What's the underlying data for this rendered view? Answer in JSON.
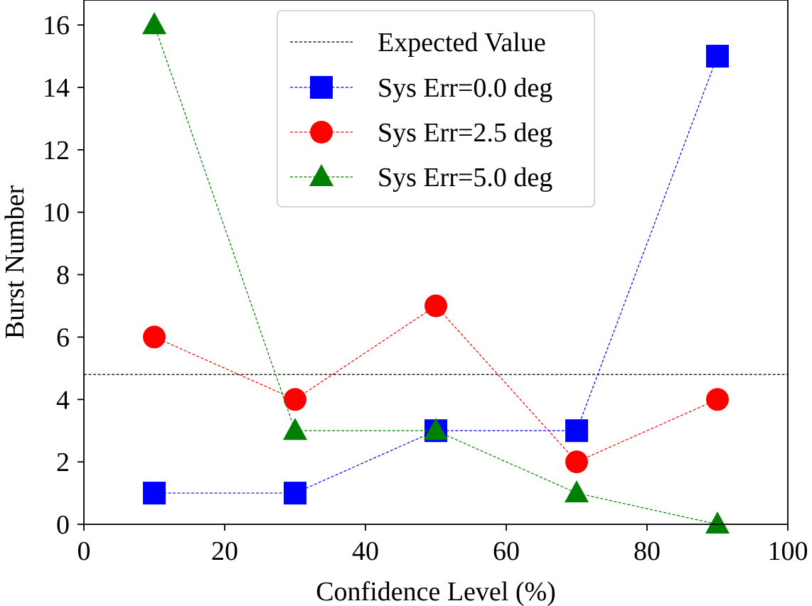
{
  "chart_data": {
    "type": "line",
    "title": "",
    "xlabel": "Confidence Level (%)",
    "ylabel": "Burst Number",
    "xlim": [
      0,
      100
    ],
    "ylim": [
      0,
      16.8
    ],
    "xticks": [
      0,
      20,
      40,
      60,
      80,
      100
    ],
    "yticks": [
      0,
      2,
      4,
      6,
      8,
      10,
      12,
      14,
      16
    ],
    "grid": false,
    "legend_position": "top-center",
    "expected_value": {
      "name": "Expected Value",
      "y": 4.8,
      "color": "#000000"
    },
    "x": [
      10,
      30,
      50,
      70,
      90
    ],
    "series": [
      {
        "name": "Sys Err=0.0 deg",
        "marker": "square",
        "color": "#0000ff",
        "values": [
          1,
          1,
          3,
          3,
          15
        ]
      },
      {
        "name": "Sys Err=2.5 deg",
        "marker": "circle",
        "color": "#ff0000",
        "values": [
          6,
          4,
          7,
          2,
          4
        ]
      },
      {
        "name": "Sys Err=5.0 deg",
        "marker": "triangle",
        "color": "#008000",
        "values": [
          16,
          3,
          3,
          1,
          0
        ]
      }
    ]
  }
}
